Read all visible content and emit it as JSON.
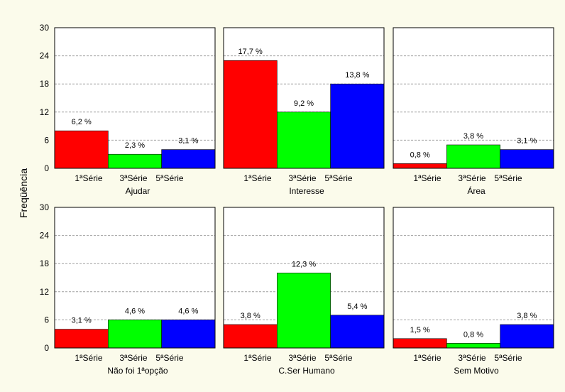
{
  "chart_data": {
    "type": "bar",
    "ylabel": "Freqüência",
    "ylim": [
      0,
      30
    ],
    "yticks": [
      0,
      6,
      12,
      18,
      24,
      30
    ],
    "grid": true,
    "categories": [
      "1ªSérie",
      "3ªSérie",
      "5ªSérie"
    ],
    "colors": [
      "#ff0000",
      "#00ff00",
      "#0000ff"
    ],
    "panels": [
      {
        "xlabel": "Ajudar",
        "values": [
          8,
          3,
          4
        ],
        "labels": [
          "6,2 %",
          "2,3 %",
          "3,1 %"
        ]
      },
      {
        "xlabel": "Interesse",
        "values": [
          23,
          12,
          18
        ],
        "labels": [
          "17,7 %",
          "9,2 %",
          "13,8 %"
        ]
      },
      {
        "xlabel": "Área",
        "values": [
          1,
          5,
          4
        ],
        "labels": [
          "0,8 %",
          "3,8 %",
          "3,1 %"
        ]
      },
      {
        "xlabel": "Não foi 1ªopção",
        "values": [
          4,
          6,
          6
        ],
        "labels": [
          "3,1 %",
          "4,6 %",
          "4,6 %"
        ]
      },
      {
        "xlabel": "C.Ser Humano",
        "values": [
          5,
          16,
          7
        ],
        "labels": [
          "3,8 %",
          "12,3 %",
          "5,4 %"
        ]
      },
      {
        "xlabel": "Sem Motivo",
        "values": [
          2,
          1,
          5
        ],
        "labels": [
          "1,5 %",
          "0,8 %",
          "3,8 %"
        ]
      }
    ]
  }
}
